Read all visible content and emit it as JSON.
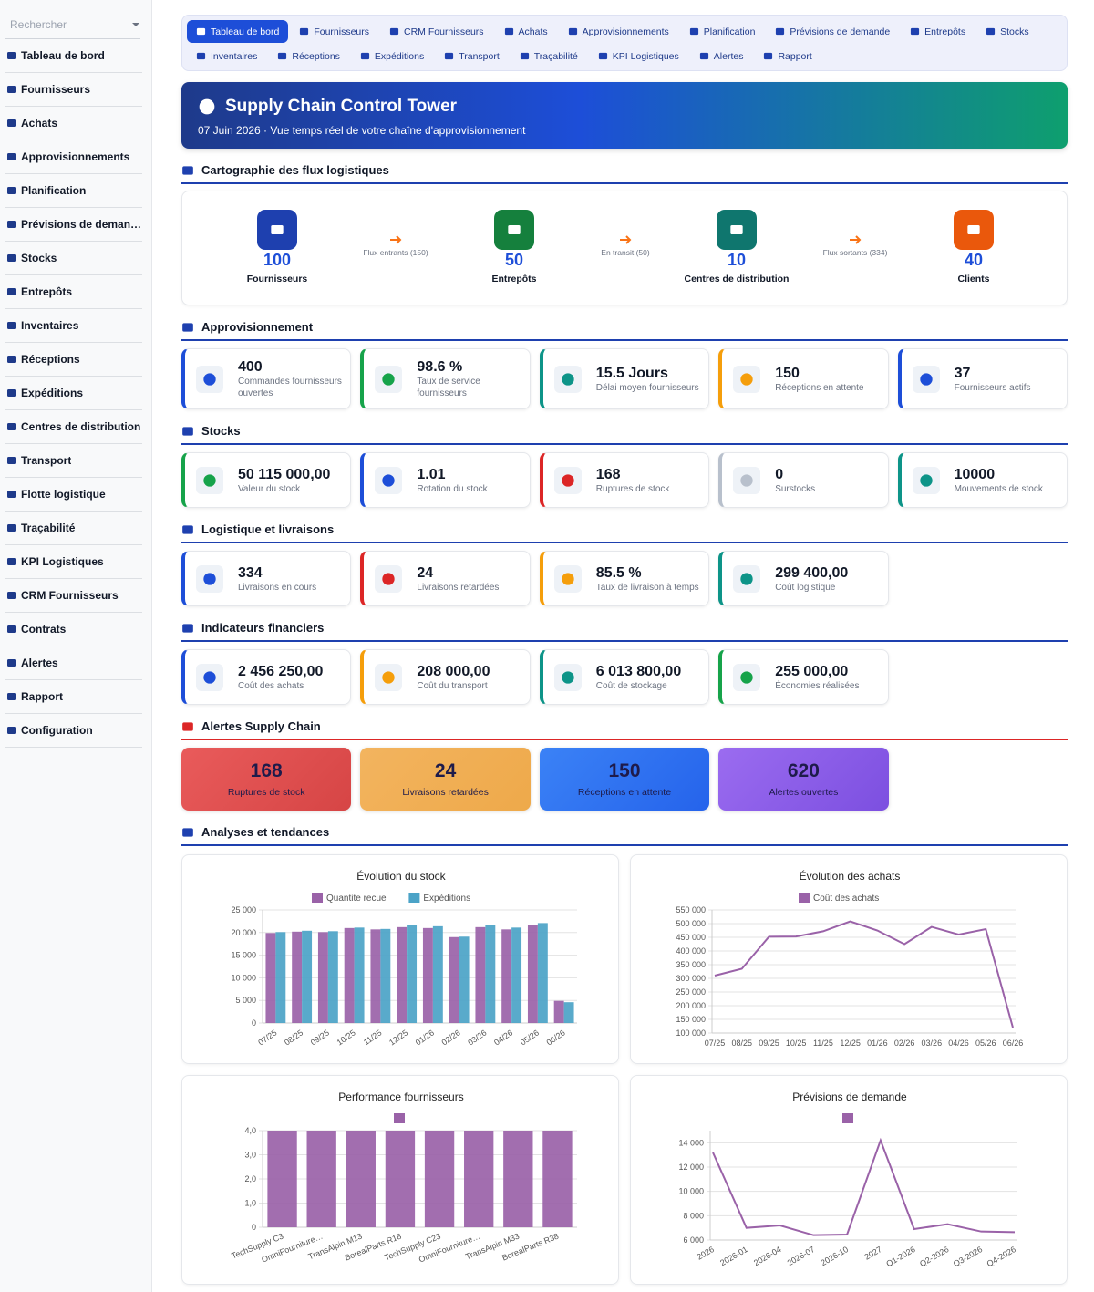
{
  "sidebar": {
    "search_placeholder": "Rechercher",
    "items": [
      "Tableau de bord",
      "Fournisseurs",
      "Achats",
      "Approvisionnements",
      "Planification",
      "Prévisions de deman…",
      "Stocks",
      "Entrepôts",
      "Inventaires",
      "Réceptions",
      "Expéditions",
      "Centres de distribution",
      "Transport",
      "Flotte logistique",
      "Traçabilité",
      "KPI Logistiques",
      "CRM Fournisseurs",
      "Contrats",
      "Alertes",
      "Rapport",
      "Configuration"
    ]
  },
  "nav": {
    "active": [
      0,
      0
    ],
    "rows": [
      [
        "Tableau de bord",
        "Fournisseurs",
        "CRM Fournisseurs",
        "Achats",
        "Approvisionnements",
        "Planification",
        "Prévisions de demande",
        "Entrepôts",
        "Stocks"
      ],
      [
        "Inventaires",
        "Réceptions",
        "Expéditions",
        "Transport",
        "Traçabilité",
        "KPI Logistiques",
        "Alertes",
        "Rapport"
      ]
    ]
  },
  "header": {
    "title": "Supply Chain Control Tower",
    "subtitle": "07 Juin 2026 · Vue temps réel de votre chaîne d'approvisionnement"
  },
  "sections": [
    {
      "kind": "flow",
      "title": "Cartographie des flux logistiques",
      "color": "#1e40af",
      "nodes": [
        {
          "value": 100,
          "label": "Fournisseurs",
          "color": "#1e40af"
        },
        {
          "value": 50,
          "label": "Entrepôts",
          "color": "#15803d"
        },
        {
          "value": 10,
          "label": "Centres de distribution",
          "color": "#0f766e"
        },
        {
          "value": 40,
          "label": "Clients",
          "color": "#ea580c"
        }
      ],
      "links": [
        "Flux entrants (150)",
        "En transit (50)",
        "Flux sortants (334)"
      ]
    },
    {
      "kind": "cards",
      "title": "Approvisionnement",
      "color": "#1e40af",
      "cards": [
        {
          "value": 400,
          "label": "Commandes fournisseurs ouvertes",
          "color": "#1d4ed8"
        },
        {
          "value": "98.6 %",
          "label": "Taux de service fournisseurs",
          "color": "#16a34a"
        },
        {
          "value": "15.5 Jours",
          "label": "Délai moyen fournisseurs",
          "color": "#0d9488"
        },
        {
          "value": 150,
          "label": "Réceptions en attente",
          "color": "#f59e0b"
        },
        {
          "value": 37,
          "label": "Fournisseurs actifs",
          "color": "#1d4ed8"
        }
      ]
    },
    {
      "kind": "cards",
      "title": "Stocks",
      "color": "#1e40af",
      "cards": [
        {
          "value": "50 115 000,00",
          "label": "Valeur du stock",
          "color": "#16a34a"
        },
        {
          "value": 1.01,
          "label": "Rotation du stock",
          "color": "#1d4ed8"
        },
        {
          "value": 168,
          "label": "Ruptures de stock",
          "color": "#dc2626"
        },
        {
          "value": 0,
          "label": "Surstocks",
          "color": "#b8c0cc"
        },
        {
          "value": 10000,
          "label": "Mouvements de stock",
          "color": "#0d9488"
        }
      ]
    },
    {
      "kind": "cards",
      "title": "Logistique et livraisons",
      "color": "#1e40af",
      "cards": [
        {
          "value": 334,
          "label": "Livraisons en cours",
          "color": "#1d4ed8"
        },
        {
          "value": 24,
          "label": "Livraisons retardées",
          "color": "#dc2626"
        },
        {
          "value": "85.5 %",
          "label": "Taux de livraison à temps",
          "color": "#f59e0b"
        },
        {
          "value": "299 400,00",
          "label": "Coût logistique",
          "color": "#0d9488"
        }
      ]
    },
    {
      "kind": "cards",
      "title": "Indicateurs financiers",
      "color": "#1e40af",
      "cards": [
        {
          "value": "2 456 250,00",
          "label": "Coût des achats",
          "color": "#1d4ed8"
        },
        {
          "value": "208 000,00",
          "label": "Coût du transport",
          "color": "#f59e0b"
        },
        {
          "value": "6 013 800,00",
          "label": "Coût de stockage",
          "color": "#0d9488"
        },
        {
          "value": "255 000,00",
          "label": "Économies réalisées",
          "color": "#16a34a"
        }
      ]
    },
    {
      "kind": "alerts",
      "title": "Alertes Supply Chain",
      "color": "#dc2626",
      "cards": [
        {
          "value": 168,
          "label": "Ruptures de stock",
          "colors": [
            "#e95b5b",
            "#d64545"
          ]
        },
        {
          "value": 24,
          "label": "Livraisons retardées",
          "colors": [
            "#f3b45f",
            "#eea94a"
          ]
        },
        {
          "value": 150,
          "label": "Réceptions en attente",
          "colors": [
            "#3b82f6",
            "#2563eb"
          ]
        },
        {
          "value": 620,
          "label": "Alertes ouvertes",
          "colors": [
            "#9b6cf0",
            "#7c4fe0"
          ]
        }
      ]
    },
    {
      "kind": "charts",
      "title": "Analyses et tendances",
      "color": "#1e40af"
    }
  ],
  "chart_data": [
    {
      "type": "bar",
      "title": "Évolution du stock",
      "categories": [
        "07/25",
        "08/25",
        "09/25",
        "10/25",
        "11/25",
        "12/25",
        "01/26",
        "02/26",
        "03/26",
        "04/26",
        "05/26",
        "06/26"
      ],
      "series": [
        {
          "name": "Quantite recue",
          "color": "#9a62a8",
          "values": [
            19900,
            20200,
            20100,
            21000,
            20700,
            21200,
            21000,
            19000,
            21200,
            20700,
            21700,
            4900
          ]
        },
        {
          "name": "Expéditions",
          "color": "#4ba3c7",
          "values": [
            20100,
            20400,
            20300,
            21100,
            20800,
            21700,
            21400,
            19100,
            21700,
            21100,
            22100,
            4600
          ]
        }
      ],
      "ylim": [
        0,
        25000
      ],
      "yticks": [
        0,
        {
          "value": 5000,
          "label": "5 000"
        },
        {
          "value": 10000,
          "label": "10 000"
        },
        {
          "value": 15000,
          "label": "15 000"
        },
        {
          "value": 20000,
          "label": "20 000"
        },
        {
          "value": 25000,
          "label": "25 000"
        }
      ],
      "grid": true,
      "legend": "top"
    },
    {
      "type": "line",
      "title": "Évolution des achats",
      "categories": [
        "07/25",
        "08/25",
        "09/25",
        "10/25",
        "11/25",
        "12/25",
        "01/26",
        "02/26",
        "03/26",
        "04/26",
        "05/26",
        "06/26"
      ],
      "series": [
        {
          "name": "Coût des achats",
          "color": "#9a62a8",
          "values": [
            310000,
            335000,
            452000,
            453000,
            472000,
            508000,
            475000,
            425000,
            488000,
            460000,
            480000,
            120000
          ]
        }
      ],
      "ylim": [
        100000,
        550000
      ],
      "yticks": [
        {
          "value": 100000,
          "label": "100 000"
        },
        {
          "value": 150000,
          "label": "150 000"
        },
        {
          "value": 200000,
          "label": "200 000"
        },
        {
          "value": 250000,
          "label": "250 000"
        },
        {
          "value": 300000,
          "label": "300 000"
        },
        {
          "value": 350000,
          "label": "350 000"
        },
        {
          "value": 400000,
          "label": "400 000"
        },
        {
          "value": 450000,
          "label": "450 000"
        },
        {
          "value": 500000,
          "label": "500 000"
        },
        {
          "value": 550000,
          "label": "550 000"
        }
      ],
      "grid": true,
      "legend": "top"
    },
    {
      "type": "bar",
      "title": "Performance fournisseurs",
      "categories": [
        "TechSupply C3",
        "OmniFourniture…",
        "TransAlpin M13",
        "BorealParts R18",
        "TechSupply C23",
        "OmniFourniture…",
        "TransAlpin M33",
        "BorealParts R38"
      ],
      "series": [
        {
          "color": "#9a62a8",
          "values": [
            4,
            4,
            4,
            4,
            4,
            4,
            4,
            4
          ]
        }
      ],
      "ylim": [
        0,
        4
      ],
      "yticks": [
        0,
        {
          "value": 1,
          "label": "1,0"
        },
        {
          "value": 2,
          "label": "2,0"
        },
        {
          "value": 3,
          "label": "3,0"
        },
        {
          "value": 4,
          "label": "4,0"
        }
      ],
      "grid": true,
      "legend": "top"
    },
    {
      "type": "line",
      "title": "Prévisions de demande",
      "categories": [
        "2026",
        "2026-01",
        "2026-04",
        "2026-07",
        "2026-10",
        "2027",
        "Q1-2026",
        "Q2-2026",
        "Q3-2026",
        "Q4-2026"
      ],
      "series": [
        {
          "color": "#9a62a8",
          "values": [
            13200,
            7000,
            7200,
            6400,
            6450,
            14200,
            6900,
            7300,
            6700,
            6650
          ]
        }
      ],
      "ylim": [
        6000,
        15000
      ],
      "yticks": [
        {
          "value": 6000,
          "label": "6 000"
        },
        {
          "value": 8000,
          "label": "8 000"
        },
        {
          "value": 10000,
          "label": "10 000"
        },
        {
          "value": 12000,
          "label": "12 000"
        },
        {
          "value": 14000,
          "label": "14 000"
        }
      ],
      "grid": true,
      "legend": "top"
    }
  ]
}
